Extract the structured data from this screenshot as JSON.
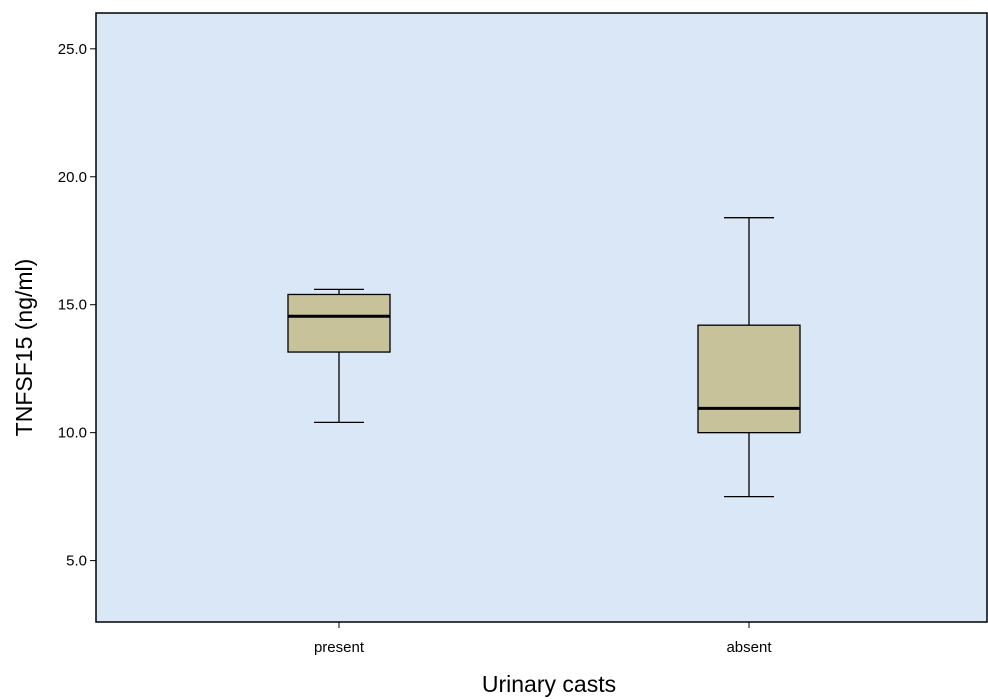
{
  "chart_data": {
    "type": "boxplot",
    "title": "",
    "xlabel": "Urinary casts",
    "ylabel": "TNFSF15 (ng/ml)",
    "ylim": [
      2.6,
      26.4
    ],
    "yticks": [
      5.0,
      10.0,
      15.0,
      20.0,
      25.0
    ],
    "ytick_labels": [
      "5.0",
      "10.0",
      "15.0",
      "20.0",
      "25.0"
    ],
    "categories": [
      "present",
      "absent"
    ],
    "boxes": [
      {
        "category": "present",
        "whisker_low": 10.4,
        "q1": 13.15,
        "median": 14.55,
        "q3": 15.4,
        "whisker_high": 15.6
      },
      {
        "category": "absent",
        "whisker_low": 7.5,
        "q1": 10.0,
        "median": 10.95,
        "q3": 14.2,
        "whisker_high": 18.4
      }
    ],
    "grid": false,
    "colors": {
      "plot_background": "#dae7f6",
      "box_fill": "#c7c29a",
      "stroke": "#000000"
    }
  }
}
